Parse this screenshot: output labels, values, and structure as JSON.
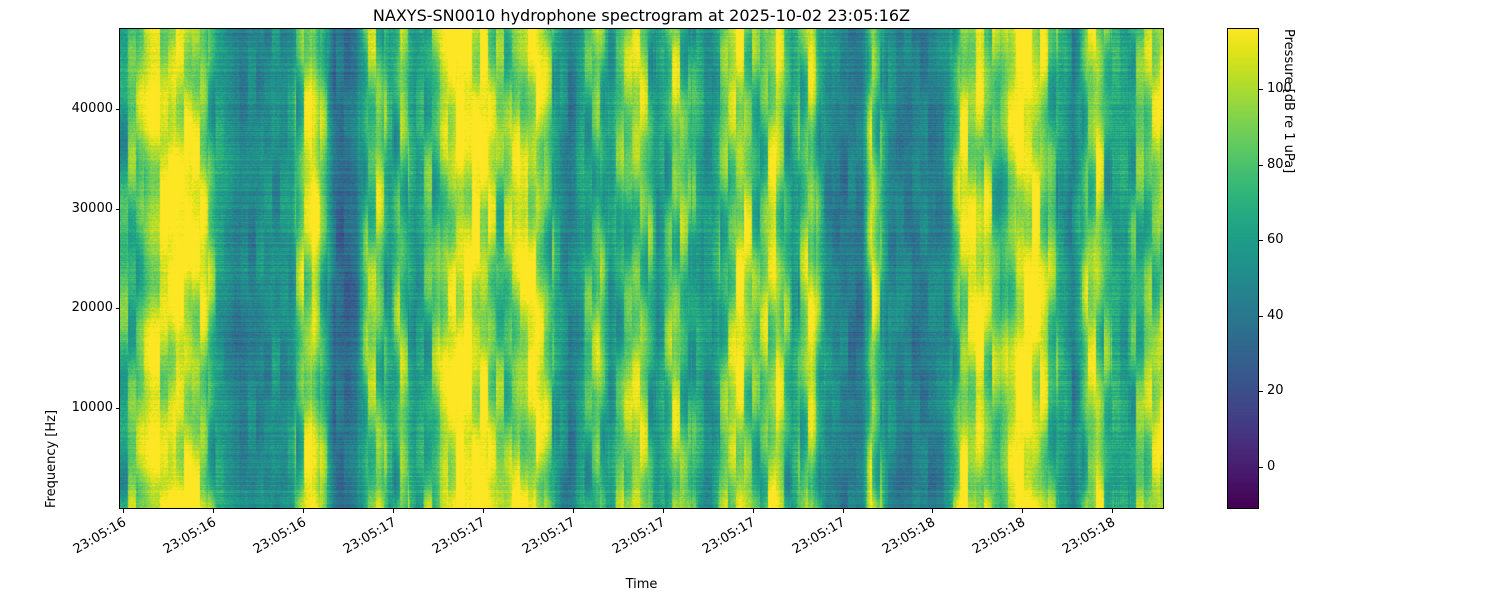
{
  "chart_data": {
    "type": "heatmap",
    "title": "NAXYS-SN0010 hydrophone spectrogram at 2025-10-02 23:05:16Z",
    "xlabel": "Time",
    "ylabel": "Frequency [Hz]",
    "y_ticks": [
      10000,
      20000,
      30000,
      40000
    ],
    "y_range": [
      0,
      48000
    ],
    "x_ticks": [
      {
        "pos": 0.003,
        "label": "23:05:16"
      },
      {
        "pos": 0.0893,
        "label": "23:05:16"
      },
      {
        "pos": 0.1756,
        "label": "23:05:16"
      },
      {
        "pos": 0.2619,
        "label": "23:05:17"
      },
      {
        "pos": 0.3482,
        "label": "23:05:17"
      },
      {
        "pos": 0.4345,
        "label": "23:05:17"
      },
      {
        "pos": 0.5208,
        "label": "23:05:17"
      },
      {
        "pos": 0.6071,
        "label": "23:05:17"
      },
      {
        "pos": 0.6934,
        "label": "23:05:17"
      },
      {
        "pos": 0.7797,
        "label": "23:05:18"
      },
      {
        "pos": 0.866,
        "label": "23:05:18"
      },
      {
        "pos": 0.9523,
        "label": "23:05:18"
      }
    ],
    "colorbar": {
      "label": "Pressure [dB re 1 uPa]",
      "ticks": [
        0,
        20,
        40,
        60,
        80,
        100
      ],
      "range": [
        -11,
        116
      ]
    },
    "colormap": {
      "name": "viridis",
      "stops": [
        [
          0.0,
          "#440154"
        ],
        [
          0.05,
          "#471365"
        ],
        [
          0.1,
          "#482475"
        ],
        [
          0.15,
          "#463480"
        ],
        [
          0.2,
          "#414487"
        ],
        [
          0.25,
          "#3b528b"
        ],
        [
          0.3,
          "#355f8d"
        ],
        [
          0.35,
          "#2f6c8e"
        ],
        [
          0.4,
          "#2a788e"
        ],
        [
          0.45,
          "#25848e"
        ],
        [
          0.5,
          "#21918c"
        ],
        [
          0.55,
          "#1e9c89"
        ],
        [
          0.6,
          "#22a884"
        ],
        [
          0.65,
          "#2fb47c"
        ],
        [
          0.7,
          "#44bf70"
        ],
        [
          0.75,
          "#5ec962"
        ],
        [
          0.8,
          "#7ad151"
        ],
        [
          0.85,
          "#9bd93c"
        ],
        [
          0.9,
          "#bddf26"
        ],
        [
          0.95,
          "#dfe318"
        ],
        [
          1.0,
          "#fde725"
        ]
      ]
    },
    "profile": [
      [
        0.0,
        0.62
      ],
      [
        0.015,
        0.68
      ],
      [
        0.03,
        0.95
      ],
      [
        0.055,
        0.99
      ],
      [
        0.08,
        0.93
      ],
      [
        0.092,
        0.6
      ],
      [
        0.11,
        0.47
      ],
      [
        0.14,
        0.46
      ],
      [
        0.165,
        0.5
      ],
      [
        0.178,
        0.85
      ],
      [
        0.186,
        0.98
      ],
      [
        0.196,
        0.7
      ],
      [
        0.205,
        0.4
      ],
      [
        0.225,
        0.38
      ],
      [
        0.238,
        0.75
      ],
      [
        0.248,
        0.82
      ],
      [
        0.258,
        0.55
      ],
      [
        0.27,
        0.78
      ],
      [
        0.283,
        0.52
      ],
      [
        0.3,
        0.7
      ],
      [
        0.315,
        0.9
      ],
      [
        0.33,
        0.99
      ],
      [
        0.35,
        0.97
      ],
      [
        0.366,
        0.72
      ],
      [
        0.382,
        0.92
      ],
      [
        0.4,
        0.96
      ],
      [
        0.418,
        0.6
      ],
      [
        0.432,
        0.4
      ],
      [
        0.448,
        0.62
      ],
      [
        0.458,
        0.78
      ],
      [
        0.47,
        0.55
      ],
      [
        0.482,
        0.72
      ],
      [
        0.5,
        0.85
      ],
      [
        0.516,
        0.52
      ],
      [
        0.532,
        0.9
      ],
      [
        0.548,
        0.66
      ],
      [
        0.568,
        0.55
      ],
      [
        0.58,
        0.7
      ],
      [
        0.595,
        0.95
      ],
      [
        0.612,
        0.7
      ],
      [
        0.628,
        0.9
      ],
      [
        0.645,
        0.55
      ],
      [
        0.663,
        0.92
      ],
      [
        0.678,
        0.5
      ],
      [
        0.695,
        0.38
      ],
      [
        0.712,
        0.42
      ],
      [
        0.722,
        0.88
      ],
      [
        0.735,
        0.48
      ],
      [
        0.755,
        0.44
      ],
      [
        0.775,
        0.46
      ],
      [
        0.795,
        0.52
      ],
      [
        0.808,
        0.88
      ],
      [
        0.825,
        0.92
      ],
      [
        0.845,
        0.65
      ],
      [
        0.862,
        0.96
      ],
      [
        0.88,
        0.98
      ],
      [
        0.9,
        0.6
      ],
      [
        0.915,
        0.4
      ],
      [
        0.928,
        0.75
      ],
      [
        0.938,
        0.88
      ],
      [
        0.95,
        0.62
      ],
      [
        0.965,
        0.58
      ],
      [
        0.978,
        0.7
      ],
      [
        0.99,
        0.8
      ],
      [
        1.0,
        0.85
      ]
    ]
  }
}
